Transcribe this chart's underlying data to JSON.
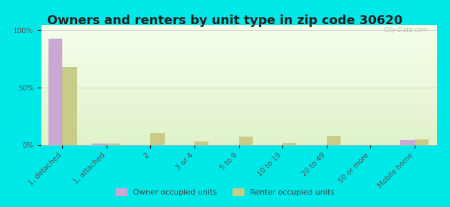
{
  "title": "Owners and renters by unit type in zip code 30620",
  "categories": [
    "1, detached",
    "1, attached",
    "2",
    "3 or 4",
    "5 to 9",
    "10 to 19",
    "20 to 49",
    "50 or more",
    "Mobile home"
  ],
  "owner_values": [
    93,
    1,
    0,
    0,
    0,
    0,
    0,
    0,
    4
  ],
  "renter_values": [
    68,
    1,
    10,
    3,
    7,
    2,
    8,
    0,
    5
  ],
  "owner_color": "#c9a8d4",
  "renter_color": "#c8cc88",
  "bg_outer": "#00e8e8",
  "ylabel_ticks": [
    "0%",
    "50%",
    "100%"
  ],
  "ytick_values": [
    0,
    50,
    100
  ],
  "ylim": [
    0,
    105
  ],
  "legend_owner": "Owner occupied units",
  "legend_renter": "Renter occupied units",
  "title_fontsize": 13,
  "tick_fontsize": 7.5,
  "watermark": "City-Data.com",
  "bar_width": 0.32
}
